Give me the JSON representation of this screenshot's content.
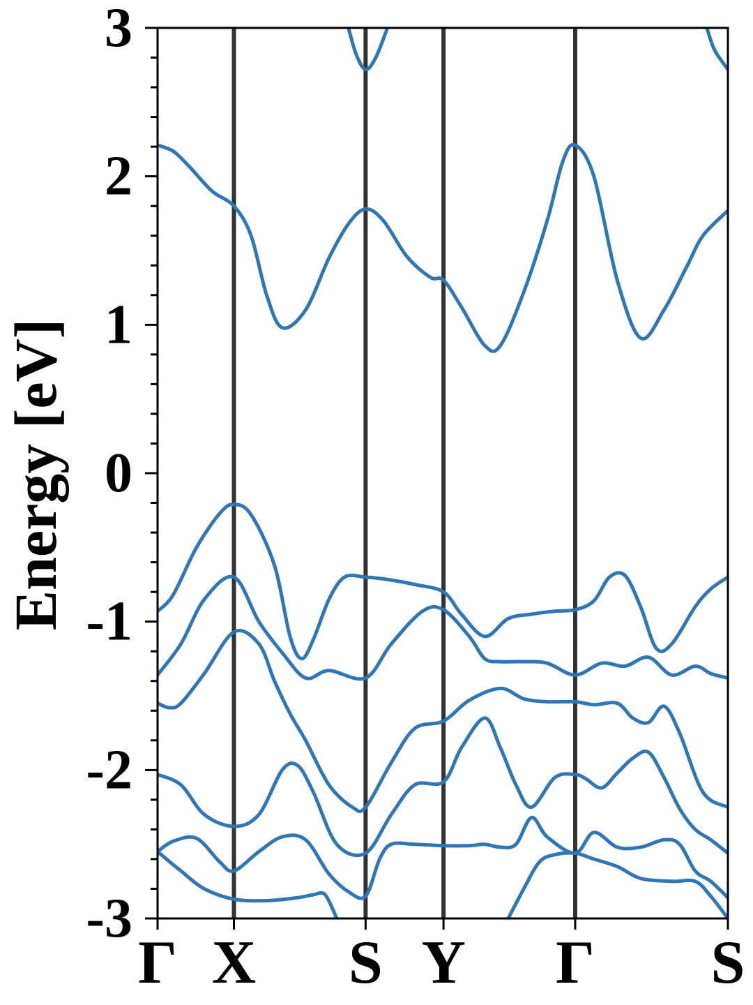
{
  "chart_data": {
    "type": "line",
    "title": "",
    "xlabel": "",
    "ylabel": "Energy [eV]",
    "ylim": [
      -3,
      3
    ],
    "xlim": [
      0,
      7.32
    ],
    "grid": false,
    "y_ticks": [
      "3",
      "2",
      "1",
      "0",
      "-1",
      "-2",
      "-3"
    ],
    "y_tick_values": [
      3,
      2,
      1,
      0,
      -1,
      -2,
      -3
    ],
    "k_points": [
      {
        "label": "Γ",
        "x": 0
      },
      {
        "label": "X",
        "x": 0.98
      },
      {
        "label": "S",
        "x": 2.67
      },
      {
        "label": "Y",
        "x": 3.67
      },
      {
        "label": "Γ",
        "x": 5.36
      },
      {
        "label": "S",
        "x": 7.32
      }
    ],
    "line_color": "#2f77b4",
    "vline_color": "#333333",
    "series": [
      {
        "x": [
          0,
          0.2,
          0.4,
          0.7,
          0.98,
          1.2,
          1.4,
          1.6,
          1.9,
          2.2,
          2.45,
          2.67,
          2.9,
          3.2,
          3.5,
          3.67,
          3.9,
          4.2,
          4.4,
          4.7,
          5.0,
          5.2,
          5.36,
          5.6,
          5.9,
          6.2,
          6.5,
          6.8,
          7.0,
          7.32
        ],
        "y": [
          2.21,
          2.17,
          2.07,
          1.9,
          1.8,
          1.6,
          1.2,
          0.98,
          1.1,
          1.45,
          1.68,
          1.78,
          1.7,
          1.46,
          1.32,
          1.3,
          1.12,
          0.86,
          0.86,
          1.22,
          1.7,
          2.1,
          2.21,
          2.0,
          1.3,
          0.91,
          1.1,
          1.4,
          1.6,
          1.77
        ]
      },
      {
        "x": [
          2.45,
          2.55,
          2.67,
          2.8,
          2.95
        ],
        "y": [
          3.0,
          2.82,
          2.72,
          2.8,
          3.0
        ]
      },
      {
        "x": [
          7.05,
          7.15,
          7.32
        ],
        "y": [
          3.0,
          2.85,
          2.72
        ]
      },
      {
        "x": [
          0,
          0.2,
          0.5,
          0.8,
          0.98,
          1.2,
          1.5,
          1.7,
          1.85,
          2.0,
          2.2,
          2.4,
          2.67,
          3.0,
          3.3,
          3.67,
          3.9,
          4.2,
          4.5,
          4.8,
          5.1,
          5.36,
          5.6,
          5.8,
          6.0,
          6.2,
          6.4,
          6.6,
          6.9,
          7.1,
          7.32
        ],
        "y": [
          -0.93,
          -0.82,
          -0.5,
          -0.27,
          -0.21,
          -0.28,
          -0.62,
          -1.1,
          -1.25,
          -1.12,
          -0.85,
          -0.7,
          -0.7,
          -0.72,
          -0.75,
          -0.8,
          -0.95,
          -1.1,
          -0.98,
          -0.95,
          -0.93,
          -0.92,
          -0.86,
          -0.7,
          -0.69,
          -0.9,
          -1.18,
          -1.15,
          -0.9,
          -0.78,
          -0.7
        ]
      },
      {
        "x": [
          0,
          0.3,
          0.6,
          0.98,
          1.3,
          1.6,
          1.9,
          2.2,
          2.67,
          3.0,
          3.4,
          3.67,
          4.0,
          4.2,
          4.4,
          4.7,
          5.0,
          5.36,
          5.7,
          6.0,
          6.3,
          6.6,
          6.9,
          7.1,
          7.32
        ],
        "y": [
          -1.36,
          -1.15,
          -0.85,
          -0.7,
          -1.0,
          -1.21,
          -1.38,
          -1.33,
          -1.38,
          -1.15,
          -0.93,
          -0.92,
          -1.1,
          -1.25,
          -1.27,
          -1.27,
          -1.28,
          -1.36,
          -1.28,
          -1.3,
          -1.24,
          -1.36,
          -1.3,
          -1.35,
          -1.38
        ]
      },
      {
        "x": [
          0,
          0.15,
          0.3,
          0.6,
          0.98,
          1.3,
          1.5,
          1.7,
          1.9,
          2.2,
          2.5,
          2.67,
          3.0,
          3.3,
          3.67,
          4.0,
          4.4,
          4.7,
          5.0,
          5.36,
          5.6,
          5.9,
          6.1,
          6.3,
          6.5,
          6.7,
          7.0,
          7.32
        ],
        "y": [
          -1.55,
          -1.58,
          -1.55,
          -1.35,
          -1.07,
          -1.15,
          -1.4,
          -1.62,
          -1.8,
          -2.1,
          -2.25,
          -2.25,
          -1.95,
          -1.72,
          -1.67,
          -1.53,
          -1.45,
          -1.52,
          -1.54,
          -1.54,
          -1.56,
          -1.55,
          -1.65,
          -1.68,
          -1.57,
          -1.75,
          -2.15,
          -2.25
        ]
      },
      {
        "x": [
          0,
          0.3,
          0.6,
          0.98,
          1.3,
          1.6,
          1.8,
          2.0,
          2.3,
          2.67,
          3.0,
          3.3,
          3.67,
          3.9,
          4.2,
          4.4,
          4.6,
          4.8,
          5.1,
          5.36,
          5.5,
          5.7,
          5.9,
          6.1,
          6.3,
          6.5,
          6.7,
          6.9,
          7.1,
          7.32
        ],
        "y": [
          -2.03,
          -2.1,
          -2.3,
          -2.38,
          -2.3,
          -2.0,
          -1.97,
          -2.15,
          -2.5,
          -2.56,
          -2.3,
          -2.1,
          -2.08,
          -1.85,
          -1.65,
          -1.85,
          -2.1,
          -2.25,
          -2.05,
          -2.03,
          -2.06,
          -2.12,
          -2.02,
          -1.92,
          -1.88,
          -2.05,
          -2.26,
          -2.4,
          -2.47,
          -2.56
        ]
      },
      {
        "x": [
          0,
          0.2,
          0.5,
          0.8,
          0.98,
          1.3,
          1.6,
          1.9,
          2.2,
          2.45,
          2.67,
          2.85,
          3.0,
          3.3,
          3.67,
          4.0,
          4.2,
          4.4,
          4.6,
          4.8,
          5.0,
          5.36,
          5.6,
          5.9,
          6.2,
          6.5,
          6.7,
          6.9,
          7.1,
          7.32
        ],
        "y": [
          -2.55,
          -2.48,
          -2.46,
          -2.62,
          -2.68,
          -2.55,
          -2.45,
          -2.47,
          -2.7,
          -2.82,
          -2.85,
          -2.6,
          -2.5,
          -2.5,
          -2.51,
          -2.51,
          -2.5,
          -2.52,
          -2.5,
          -2.32,
          -2.45,
          -2.56,
          -2.42,
          -2.52,
          -2.52,
          -2.47,
          -2.5,
          -2.68,
          -2.75,
          -2.86
        ]
      },
      {
        "x": [
          0,
          0.3,
          0.6,
          0.98,
          1.4,
          1.8,
          2.0,
          2.15,
          2.3
        ],
        "y": [
          -2.55,
          -2.68,
          -2.8,
          -2.87,
          -2.88,
          -2.86,
          -2.84,
          -2.84,
          -3.0
        ]
      },
      {
        "x": [
          4.5,
          4.7,
          4.9,
          5.1,
          5.36,
          5.6,
          5.9,
          6.2,
          6.6,
          6.9,
          7.1,
          7.32
        ],
        "y": [
          -3.0,
          -2.8,
          -2.62,
          -2.57,
          -2.56,
          -2.6,
          -2.65,
          -2.73,
          -2.75,
          -2.75,
          -2.85,
          -3.0
        ]
      }
    ]
  }
}
